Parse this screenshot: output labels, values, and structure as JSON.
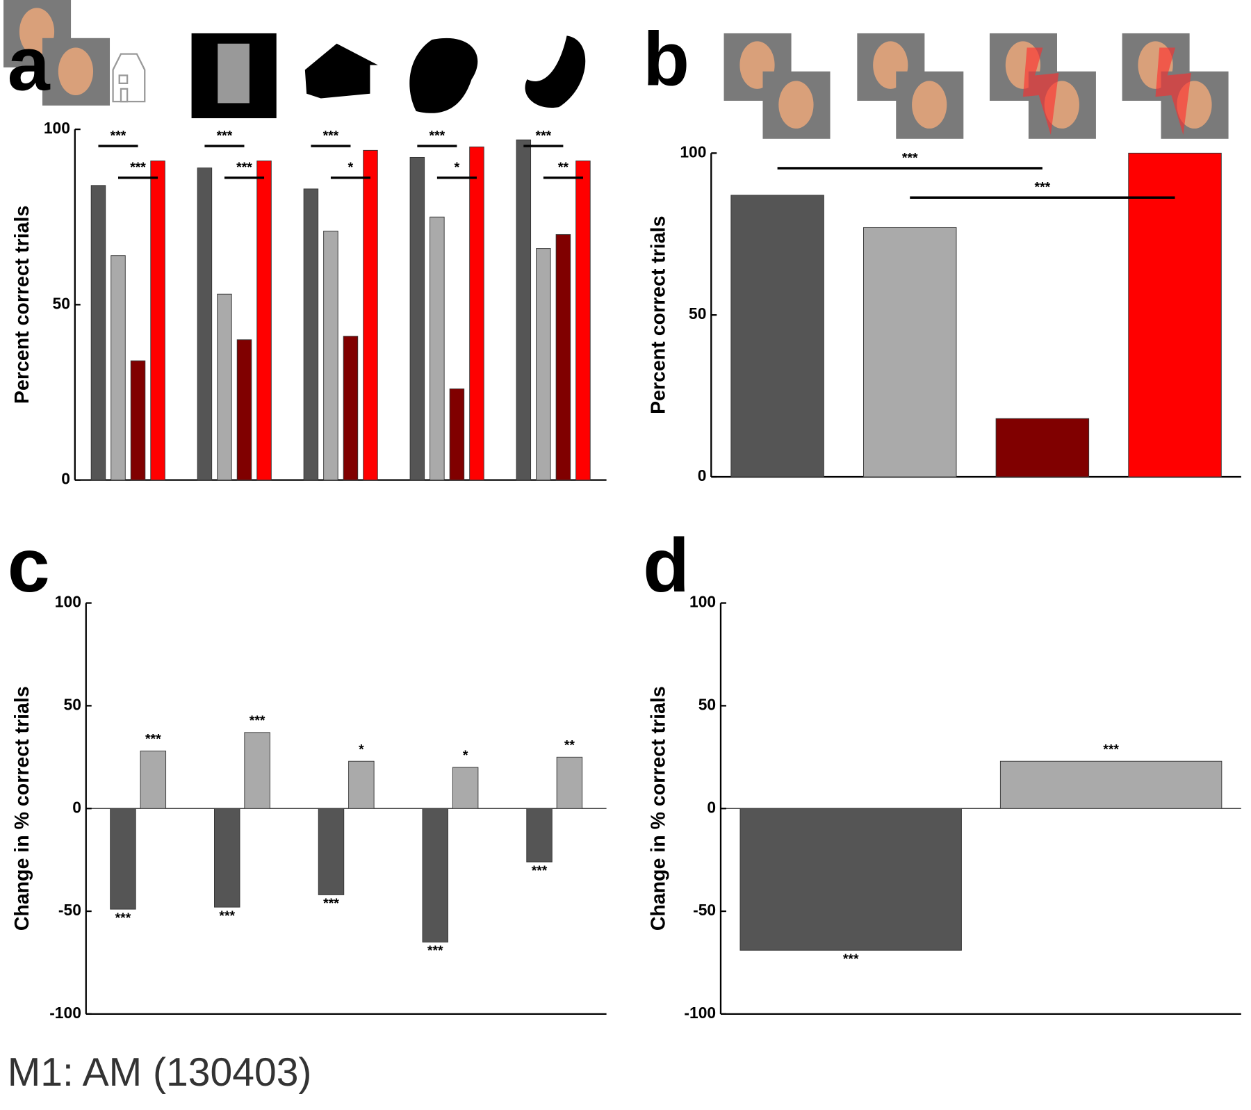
{
  "chart_data": [
    {
      "type": "bar",
      "panel_label": "a",
      "ylabel": "Percent correct trials",
      "categories": [
        null,
        null,
        null,
        null,
        null
      ],
      "series": [
        {
          "color": "#555555",
          "values": [
            84,
            89,
            83,
            92,
            97
          ]
        },
        {
          "color": "#aaaaaa",
          "values": [
            64,
            53,
            71,
            75,
            66
          ]
        },
        {
          "color": "#800000",
          "values": [
            34,
            40,
            41,
            26,
            70
          ]
        },
        {
          "color": "#ff0000",
          "values": [
            91,
            91,
            94,
            95,
            91
          ]
        }
      ],
      "significance_labels": [
        [
          "***",
          "***"
        ],
        [
          "***",
          "***"
        ],
        [
          "***",
          "*"
        ],
        [
          "***",
          "*"
        ],
        [
          "***",
          "**"
        ]
      ],
      "ylim": [
        0,
        100
      ],
      "yticks": [
        0,
        50,
        100
      ]
    },
    {
      "type": "bar",
      "panel_label": "b",
      "ylabel": "Percent correct trials",
      "categories": [
        null,
        null,
        null,
        null
      ],
      "values": [
        87,
        77,
        18,
        100
      ],
      "colors": [
        "#555555",
        "#aaaaaa",
        "#800000",
        "#ff0000"
      ],
      "significance_labels": [
        "***",
        "***"
      ],
      "ylim": [
        0,
        100
      ],
      "yticks": [
        0,
        50,
        100
      ]
    },
    {
      "type": "bar",
      "panel_label": "c",
      "ylabel": "Change in % correct trials",
      "categories": [
        null,
        null,
        null,
        null,
        null
      ],
      "series": [
        {
          "color": "#555555",
          "values": [
            -49,
            -48,
            -42,
            -65,
            -26
          ],
          "significance_labels": [
            "***",
            "***",
            "***",
            "***",
            "***"
          ]
        },
        {
          "color": "#aaaaaa",
          "values": [
            28,
            37,
            23,
            20,
            25
          ],
          "significance_labels": [
            "***",
            "***",
            "*",
            "*",
            "**"
          ]
        }
      ],
      "ylim": [
        -100,
        100
      ],
      "yticks": [
        -100,
        -50,
        0,
        50,
        100
      ]
    },
    {
      "type": "bar",
      "panel_label": "d",
      "ylabel": "Change in % correct trials",
      "categories": [
        null,
        null
      ],
      "values": [
        -69,
        23
      ],
      "colors": [
        "#555555",
        "#aaaaaa"
      ],
      "significance_labels": [
        "***",
        "***"
      ],
      "ylim": [
        -100,
        100
      ],
      "yticks": [
        -100,
        -50,
        0,
        50,
        100
      ]
    }
  ],
  "footer": "M1: AM (130403)"
}
